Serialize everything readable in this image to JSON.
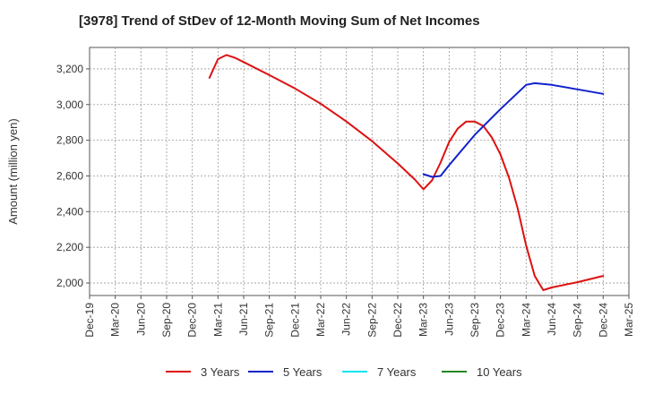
{
  "chart_data": {
    "type": "line",
    "title": "[3978]  Trend of StDev of 12-Month Moving Sum of Net Incomes",
    "xlabel": "",
    "ylabel": "Amount (million yen)",
    "ylim": [
      1930,
      3320
    ],
    "y_ticks": [
      2000,
      2200,
      2400,
      2600,
      2800,
      3000,
      3200
    ],
    "y_tick_labels": [
      "2,000",
      "2,200",
      "2,400",
      "2,600",
      "2,800",
      "3,000",
      "3,200"
    ],
    "x_tick_labels": [
      "Dec-19",
      "Mar-20",
      "Jun-20",
      "Sep-20",
      "Dec-20",
      "Mar-21",
      "Jun-21",
      "Sep-21",
      "Dec-21",
      "Mar-22",
      "Jun-22",
      "Sep-22",
      "Dec-22",
      "Mar-23",
      "Jun-23",
      "Sep-23",
      "Dec-23",
      "Mar-24",
      "Jun-24",
      "Sep-24",
      "Dec-24",
      "Mar-25"
    ],
    "grid": true,
    "legend_position": "bottom",
    "series": [
      {
        "name": "3 Years",
        "color": "#dd1111",
        "points": [
          [
            "Feb-21",
            3150
          ],
          [
            "Mar-21",
            3255
          ],
          [
            "Apr-21",
            3278
          ],
          [
            "May-21",
            3262
          ],
          [
            "Jun-21",
            3238
          ],
          [
            "Sep-21",
            3165
          ],
          [
            "Dec-21",
            3090
          ],
          [
            "Mar-22",
            3005
          ],
          [
            "Jun-22",
            2905
          ],
          [
            "Sep-22",
            2795
          ],
          [
            "Dec-22",
            2670
          ],
          [
            "Feb-23",
            2580
          ],
          [
            "Mar-23",
            2525
          ],
          [
            "Apr-23",
            2575
          ],
          [
            "May-23",
            2675
          ],
          [
            "Jun-23",
            2790
          ],
          [
            "Jul-23",
            2865
          ],
          [
            "Aug-23",
            2905
          ],
          [
            "Sep-23",
            2905
          ],
          [
            "Oct-23",
            2880
          ],
          [
            "Nov-23",
            2815
          ],
          [
            "Dec-23",
            2720
          ],
          [
            "Jan-24",
            2590
          ],
          [
            "Feb-24",
            2420
          ],
          [
            "Mar-24",
            2210
          ],
          [
            "Apr-24",
            2040
          ],
          [
            "May-24",
            1960
          ],
          [
            "Jun-24",
            1975
          ],
          [
            "Sep-24",
            2005
          ],
          [
            "Dec-24",
            2040
          ]
        ]
      },
      {
        "name": "5 Years",
        "color": "#1122cc",
        "points": [
          [
            "Mar-23",
            2610
          ],
          [
            "Apr-23",
            2595
          ],
          [
            "May-23",
            2600
          ],
          [
            "Jun-23",
            2660
          ],
          [
            "Sep-23",
            2830
          ],
          [
            "Dec-23",
            2975
          ],
          [
            "Mar-24",
            3110
          ],
          [
            "Apr-24",
            3120
          ],
          [
            "Jun-24",
            3110
          ],
          [
            "Sep-24",
            3085
          ],
          [
            "Dec-24",
            3060
          ]
        ]
      },
      {
        "name": "7 Years",
        "color": "#00e5ee",
        "points": []
      },
      {
        "name": "10 Years",
        "color": "#228822",
        "points": []
      }
    ]
  }
}
